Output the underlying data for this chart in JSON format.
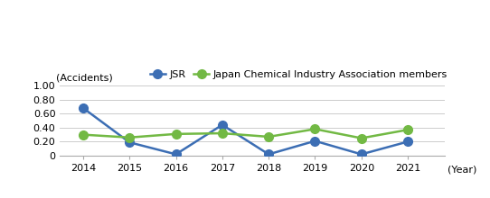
{
  "years": [
    2014,
    2015,
    2016,
    2017,
    2018,
    2019,
    2020,
    2021
  ],
  "jsr": [
    0.68,
    0.19,
    0.02,
    0.44,
    0.02,
    0.21,
    0.02,
    0.2
  ],
  "jcia": [
    0.3,
    0.26,
    0.31,
    0.32,
    0.27,
    0.38,
    0.25,
    0.37
  ],
  "jsr_color": "#3c6eb4",
  "jcia_color": "#72b944",
  "jsr_label": "JSR",
  "jcia_label": "Japan Chemical Industry Association members",
  "ylabel": "(Accidents)",
  "xlabel": "(Year)",
  "ylim": [
    0,
    1.0
  ],
  "yticks": [
    0,
    0.2,
    0.4,
    0.6,
    0.8,
    1.0
  ],
  "ytick_labels": [
    "0",
    "0.20",
    "0.40",
    "0.60",
    "0.80",
    "1.00"
  ],
  "bg_color": "#ffffff",
  "marker_size": 7,
  "linewidth": 1.8
}
